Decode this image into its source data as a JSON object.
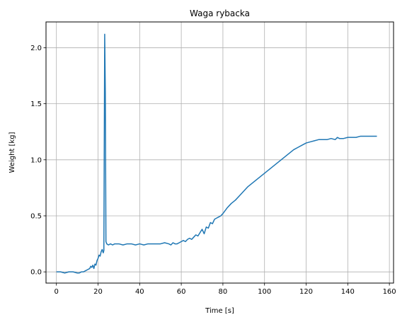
{
  "chart_data": {
    "type": "line",
    "title": "Waga rybacka",
    "xlabel": "Time [s]",
    "ylabel": "Weight [kg]",
    "xlim": [
      -5,
      162
    ],
    "ylim": [
      -0.1,
      2.23
    ],
    "grid": true,
    "x_ticks": [
      0,
      20,
      40,
      60,
      80,
      100,
      120,
      140,
      160
    ],
    "x_tick_labels": [
      "0",
      "20",
      "40",
      "60",
      "80",
      "100",
      "120",
      "140",
      "160"
    ],
    "y_ticks": [
      0.0,
      0.5,
      1.0,
      1.5,
      2.0
    ],
    "y_tick_labels": [
      "0.0",
      "0.5",
      "1.0",
      "1.5",
      "2.0"
    ],
    "series": [
      {
        "color": "#1f77b4",
        "x": [
          0,
          2,
          4,
          6,
          8,
          10,
          11,
          12,
          13,
          14,
          15,
          16,
          16.5,
          17,
          17.5,
          18,
          18.5,
          19,
          19.5,
          20,
          20.5,
          21,
          21.5,
          22,
          22.5,
          22.8,
          23.2,
          23.5,
          23.8,
          24.2,
          25,
          26,
          27,
          28,
          29,
          30,
          32,
          34,
          36,
          38,
          40,
          42,
          44,
          46,
          48,
          50,
          52,
          54,
          55,
          56,
          57,
          58,
          59,
          60,
          61,
          62,
          63,
          64,
          65,
          66,
          67,
          68,
          69,
          70,
          71,
          72,
          73,
          74,
          75,
          76,
          77,
          78,
          79,
          80,
          82,
          84,
          86,
          88,
          90,
          92,
          94,
          96,
          98,
          100,
          102,
          104,
          106,
          108,
          110,
          112,
          114,
          116,
          118,
          120,
          122,
          124,
          126,
          128,
          130,
          132,
          134,
          135,
          136,
          138,
          140,
          142,
          144,
          146,
          148,
          150,
          152,
          154
        ],
        "y": [
          0.0,
          0.0,
          -0.01,
          0.0,
          0.0,
          -0.01,
          -0.01,
          0.0,
          0.0,
          0.01,
          0.02,
          0.03,
          0.05,
          0.04,
          0.06,
          0.03,
          0.07,
          0.06,
          0.1,
          0.12,
          0.15,
          0.14,
          0.18,
          0.2,
          0.17,
          0.19,
          2.12,
          1.6,
          0.27,
          0.25,
          0.24,
          0.25,
          0.24,
          0.25,
          0.25,
          0.25,
          0.24,
          0.25,
          0.25,
          0.24,
          0.25,
          0.24,
          0.25,
          0.25,
          0.25,
          0.25,
          0.26,
          0.25,
          0.24,
          0.26,
          0.25,
          0.25,
          0.26,
          0.27,
          0.28,
          0.27,
          0.29,
          0.3,
          0.29,
          0.31,
          0.33,
          0.32,
          0.35,
          0.38,
          0.34,
          0.4,
          0.39,
          0.44,
          0.43,
          0.47,
          0.48,
          0.49,
          0.5,
          0.52,
          0.57,
          0.61,
          0.64,
          0.68,
          0.72,
          0.76,
          0.79,
          0.82,
          0.85,
          0.88,
          0.91,
          0.94,
          0.97,
          1.0,
          1.03,
          1.06,
          1.09,
          1.11,
          1.13,
          1.15,
          1.16,
          1.17,
          1.18,
          1.18,
          1.18,
          1.19,
          1.18,
          1.2,
          1.19,
          1.19,
          1.2,
          1.2,
          1.2,
          1.21,
          1.21,
          1.21,
          1.21,
          1.21
        ]
      }
    ]
  }
}
